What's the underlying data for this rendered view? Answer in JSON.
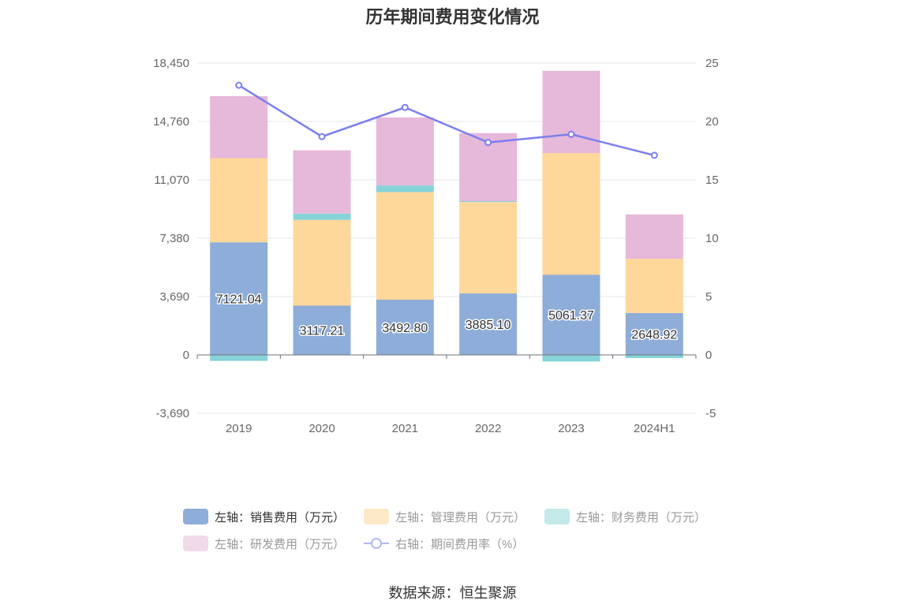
{
  "title": "历年期间费用变化情况",
  "source": "数据来源：恒生聚源",
  "chart_data": {
    "type": "bar",
    "stacked": true,
    "categories": [
      "2019",
      "2020",
      "2021",
      "2022",
      "2023",
      "2024H1"
    ],
    "left_axis": {
      "ylim": [
        -3690,
        18450
      ],
      "ticks": [
        "-3,690",
        "0",
        "3,690",
        "7,380",
        "11,070",
        "14,760",
        "18,450"
      ]
    },
    "right_axis": {
      "ylim": [
        -5,
        25
      ],
      "ticks": [
        "-5",
        "0",
        "5",
        "10",
        "15",
        "20",
        "25"
      ]
    },
    "series": [
      {
        "name": "左轴：销售费用（万元）",
        "color": "#8eadd9",
        "values": [
          7121.04,
          3117.21,
          3492.8,
          3885.1,
          5061.37,
          2648.92
        ],
        "labels": [
          "7121.04",
          "3117.21",
          "3492.80",
          "3885.10",
          "5061.37",
          "2648.92"
        ]
      },
      {
        "name": "左轴：管理费用（万元）",
        "color": "#fed79b",
        "values": [
          5320,
          5420,
          6800,
          5780,
          7700,
          3430
        ]
      },
      {
        "name": "左轴：财务费用（万元）",
        "color": "#86d4d8",
        "values": [
          -380,
          400,
          420,
          60,
          -420,
          -200
        ]
      },
      {
        "name": "左轴：研发费用（万元）",
        "color": "#e6b8da",
        "values": [
          3920,
          4000,
          4300,
          4300,
          5200,
          2800
        ]
      }
    ],
    "line_series": {
      "name": "右轴：期间费用率（%）",
      "color": "#7b7fed",
      "axis": "right",
      "values": [
        23.1,
        18.7,
        21.2,
        18.2,
        18.9,
        17.1
      ]
    },
    "grid": true,
    "legend_position": "bottom"
  },
  "legend": [
    {
      "label": "左轴：销售费用（万元）",
      "color": "#8eadd9",
      "active": true
    },
    {
      "label": "左轴：管理费用（万元）",
      "color": "#fde8c8",
      "active": false
    },
    {
      "label": "左轴：财务费用（万元）",
      "color": "#c3e9eb",
      "active": false
    },
    {
      "label": "左轴：研发费用（万元）",
      "color": "#f1dbeb",
      "active": false
    },
    {
      "label": "右轴：期间费用率（%）",
      "color": "#b3b8f4",
      "active": false,
      "line": true
    }
  ]
}
